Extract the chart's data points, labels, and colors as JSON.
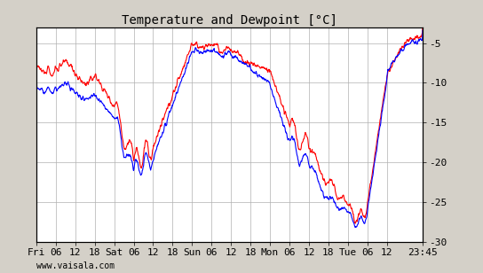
{
  "title": "Temperature and Dewpoint [°C]",
  "yticks": [
    -30,
    -25,
    -20,
    -15,
    -10,
    -5
  ],
  "ylim": [
    -30,
    -3
  ],
  "background_color": "#d4d0c8",
  "plot_bg_color": "#ffffff",
  "grid_color": "#b0b0b0",
  "temp_color": "#ff0000",
  "dewp_color": "#0000ff",
  "linewidth": 0.8,
  "x_tick_labels": [
    "Fri",
    "06",
    "12",
    "18",
    "Sat",
    "06",
    "12",
    "18",
    "Sun",
    "06",
    "12",
    "18",
    "Mon",
    "06",
    "12",
    "18",
    "Tue",
    "06",
    "12",
    "23:45"
  ],
  "x_tick_positions": [
    0,
    6,
    12,
    18,
    24,
    30,
    36,
    42,
    48,
    54,
    60,
    66,
    72,
    78,
    84,
    90,
    96,
    102,
    108,
    119
  ],
  "xlabel_bottom": "www.vaisala.com",
  "total_hours": 119,
  "font_family": "monospace",
  "title_fontsize": 10,
  "tick_fontsize": 8
}
